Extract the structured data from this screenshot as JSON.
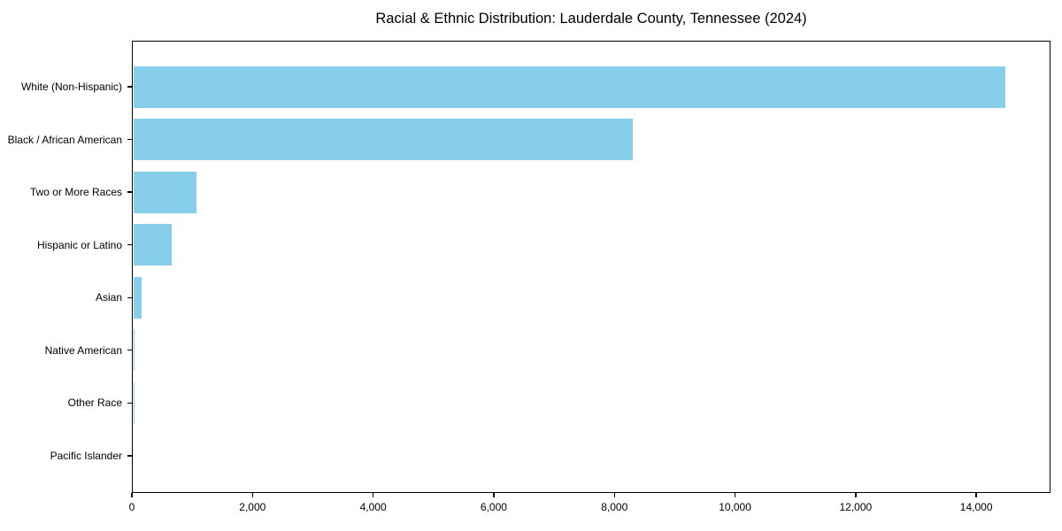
{
  "title": "Racial & Ethnic Distribution: Lauderdale County, Tennessee (2024)",
  "colors": {
    "bar": "#87CEEB",
    "axis": "#000000",
    "background": "#ffffff",
    "text": "#000000"
  },
  "chart_data": {
    "type": "bar",
    "orientation": "horizontal",
    "title": "Racial & Ethnic Distribution: Lauderdale County, Tennessee (2024)",
    "xlabel": "",
    "ylabel": "",
    "categories": [
      "White (Non-Hispanic)",
      "Black / African American",
      "Two or More Races",
      "Hispanic or Latino",
      "Asian",
      "Native American",
      "Other Race",
      "Pacific Islander"
    ],
    "values": [
      14480,
      8310,
      1070,
      665,
      160,
      50,
      35,
      10
    ],
    "bar_color": "#87CEEB",
    "xlim": [
      0,
      15230
    ],
    "x_ticks": [
      0,
      2000,
      4000,
      6000,
      8000,
      10000,
      12000,
      14000
    ],
    "x_tick_labels": [
      "0",
      "2,000",
      "4,000",
      "6,000",
      "8,000",
      "10,000",
      "12,000",
      "14,000"
    ],
    "grid": false,
    "legend": null
  }
}
